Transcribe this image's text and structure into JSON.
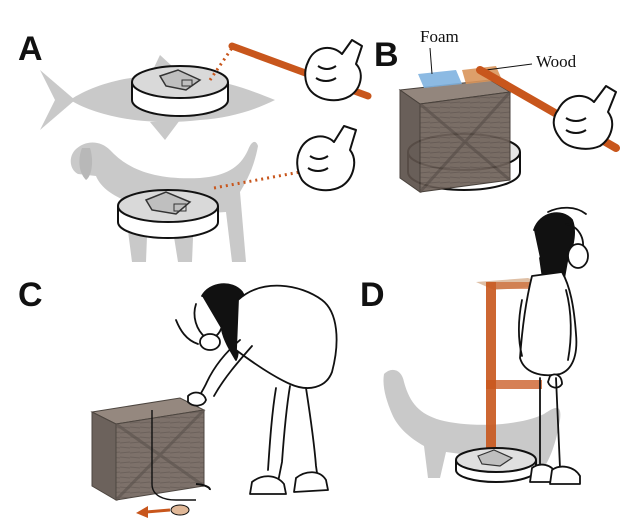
{
  "panels": [
    {
      "letter": "A"
    },
    {
      "letter": "B"
    },
    {
      "letter": "C"
    },
    {
      "letter": "D"
    }
  ],
  "callouts": {
    "foam": "Foam",
    "wood": "Wood"
  },
  "colors": {
    "force_rod": "#c8561c",
    "animal_silhouette": "#c8c8c8",
    "crate": "#6e6158",
    "foam_pad": "#7fb2e0",
    "wood_pad": "#d9955a",
    "outline": "#111111"
  },
  "icons": [
    "fish-silhouette-icon",
    "dog-silhouette-icon",
    "hand-icon",
    "person-icon",
    "crate-icon",
    "scale-plate-icon"
  ]
}
